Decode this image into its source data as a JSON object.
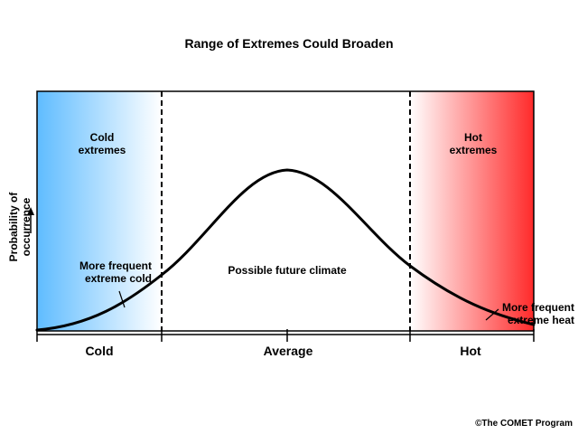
{
  "title": "Range of Extremes Could Broaden",
  "y_axis_label": "Probability of occurrence",
  "regions": {
    "cold_label_line1": "Cold",
    "cold_label_line2": "extremes",
    "hot_label_line1": "Hot",
    "hot_label_line2": "extremes",
    "center_label": "Possible future climate"
  },
  "annotations": {
    "cold_line1": "More frequent",
    "cold_line2": "extreme cold",
    "heat_line1": "More frequent",
    "heat_line2": "extreme heat"
  },
  "x_axis": {
    "left": "Cold",
    "middle": "Average",
    "right": "Hot"
  },
  "colors": {
    "cold": "#5fbcff",
    "hot": "#ff2a2a",
    "curve": "#000000"
  },
  "credit": "©The COMET Program"
}
